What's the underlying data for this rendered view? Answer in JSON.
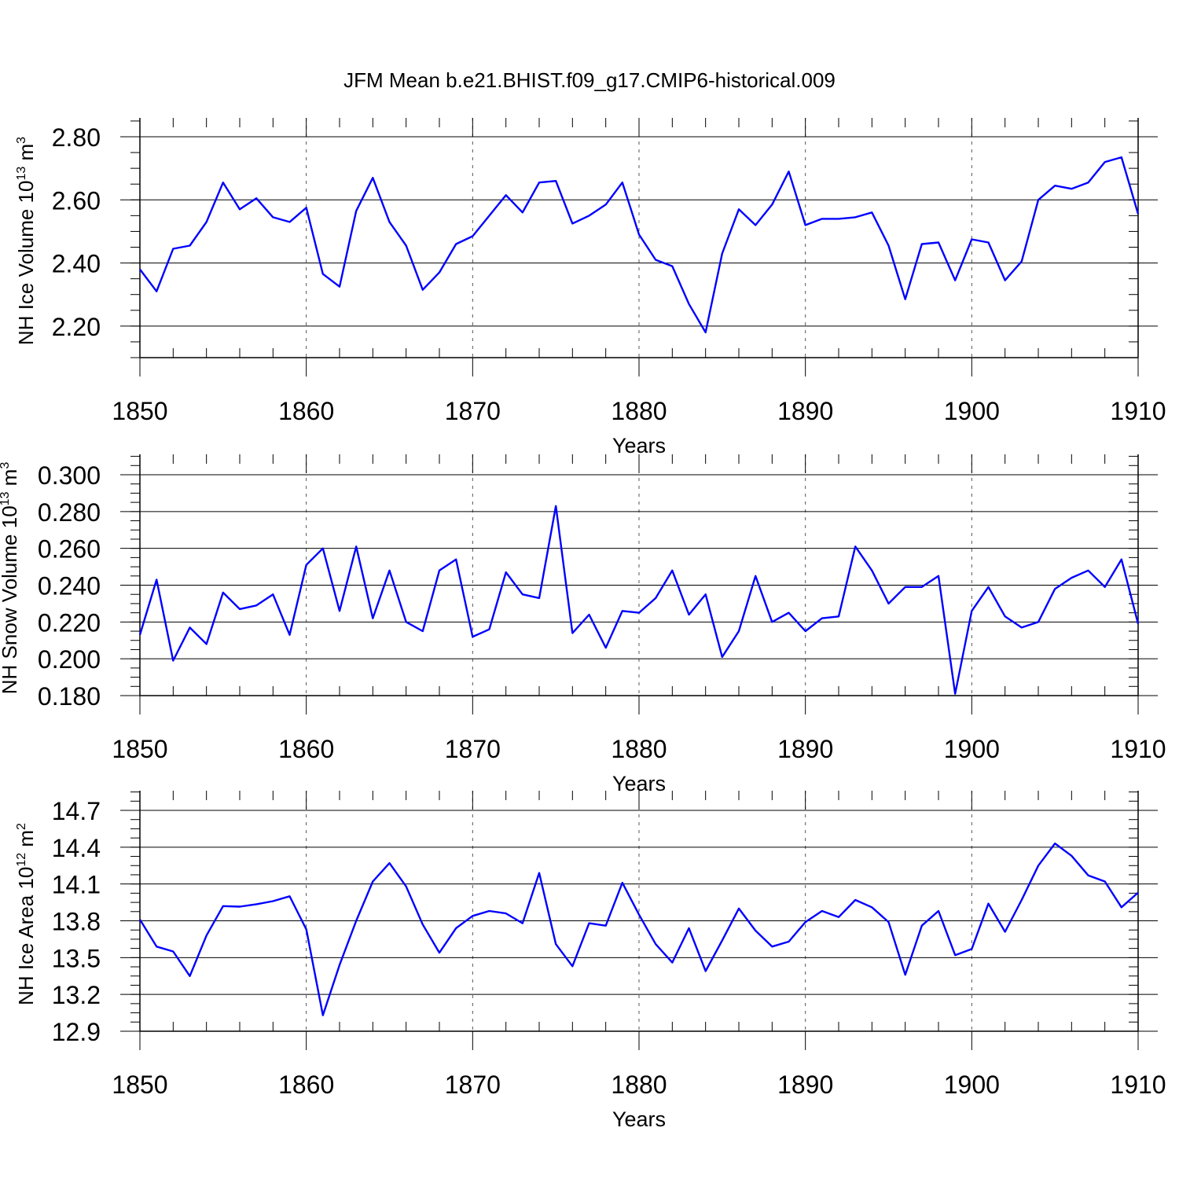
{
  "title": "JFM Mean b.e21.BHIST.f09_g17.CMIP6-historical.009",
  "line_color": "#0000ff",
  "chart_data": [
    {
      "type": "line",
      "ylabel": "NH Ice Volume 10",
      "ylabel_exp": "13",
      "ylabel_unit": " m",
      "ylabel_unit_exp": "3",
      "xlabel": "Years",
      "xlim": [
        1850,
        1910
      ],
      "ylim": [
        2.1,
        2.86
      ],
      "grid_x": "dashed vertical at major ticks",
      "x_ticks": [
        1850,
        1860,
        1870,
        1880,
        1890,
        1900,
        1910
      ],
      "x_tick_labels": [
        "1850",
        "1860",
        "1870",
        "1880",
        "1890",
        "1900",
        "1910"
      ],
      "y_ticks": [
        2.2,
        2.4,
        2.6,
        2.8
      ],
      "y_tick_labels": [
        "2.20",
        "2.40",
        "2.60",
        "2.80"
      ],
      "x": [
        1850,
        1851,
        1852,
        1853,
        1854,
        1855,
        1856,
        1857,
        1858,
        1859,
        1860,
        1861,
        1862,
        1863,
        1864,
        1865,
        1866,
        1867,
        1868,
        1869,
        1870,
        1871,
        1872,
        1873,
        1874,
        1875,
        1876,
        1877,
        1878,
        1879,
        1880,
        1881,
        1882,
        1883,
        1884,
        1885,
        1886,
        1887,
        1888,
        1889,
        1890,
        1891,
        1892,
        1893,
        1894,
        1895,
        1896,
        1897,
        1898,
        1899,
        1900,
        1901,
        1902,
        1903,
        1904,
        1905,
        1906,
        1907,
        1908,
        1909,
        1910
      ],
      "values": [
        2.38,
        2.31,
        2.445,
        2.455,
        2.53,
        2.655,
        2.57,
        2.605,
        2.545,
        2.53,
        2.575,
        2.365,
        2.325,
        2.565,
        2.67,
        2.53,
        2.455,
        2.315,
        2.37,
        2.46,
        2.485,
        2.55,
        2.615,
        2.56,
        2.655,
        2.66,
        2.525,
        2.55,
        2.585,
        2.655,
        2.49,
        2.41,
        2.39,
        2.27,
        2.18,
        2.43,
        2.57,
        2.52,
        2.585,
        2.69,
        2.52,
        2.54,
        2.54,
        2.545,
        2.56,
        2.455,
        2.285,
        2.46,
        2.465,
        2.345,
        2.475,
        2.465,
        2.345,
        2.405,
        2.6,
        2.645,
        2.635,
        2.655,
        2.72,
        2.735,
        2.555
      ]
    },
    {
      "type": "line",
      "ylabel": "NH Snow Volume 10",
      "ylabel_exp": "13",
      "ylabel_unit": " m",
      "ylabel_unit_exp": "3",
      "xlabel": "Years",
      "xlim": [
        1850,
        1910
      ],
      "ylim": [
        0.18,
        0.3
      ],
      "grid_x": "dashed vertical at major ticks",
      "x_ticks": [
        1850,
        1860,
        1870,
        1880,
        1890,
        1900,
        1910
      ],
      "x_tick_labels": [
        "1850",
        "1860",
        "1870",
        "1880",
        "1890",
        "1900",
        "1910"
      ],
      "y_ticks": [
        0.18,
        0.2,
        0.22,
        0.24,
        0.26,
        0.28,
        0.3
      ],
      "y_tick_labels": [
        "0.180",
        "0.200",
        "0.220",
        "0.240",
        "0.260",
        "0.280",
        "0.300"
      ],
      "x": [
        1850,
        1851,
        1852,
        1853,
        1854,
        1855,
        1856,
        1857,
        1858,
        1859,
        1860,
        1861,
        1862,
        1863,
        1864,
        1865,
        1866,
        1867,
        1868,
        1869,
        1870,
        1871,
        1872,
        1873,
        1874,
        1875,
        1876,
        1877,
        1878,
        1879,
        1880,
        1881,
        1882,
        1883,
        1884,
        1885,
        1886,
        1887,
        1888,
        1889,
        1890,
        1891,
        1892,
        1893,
        1894,
        1895,
        1896,
        1897,
        1898,
        1899,
        1900,
        1901,
        1902,
        1903,
        1904,
        1905,
        1906,
        1907,
        1908,
        1909,
        1910
      ],
      "values": [
        0.213,
        0.243,
        0.199,
        0.217,
        0.208,
        0.236,
        0.227,
        0.229,
        0.235,
        0.213,
        0.251,
        0.26,
        0.226,
        0.261,
        0.222,
        0.248,
        0.22,
        0.215,
        0.248,
        0.254,
        0.212,
        0.216,
        0.247,
        0.235,
        0.233,
        0.283,
        0.214,
        0.224,
        0.206,
        0.226,
        0.225,
        0.233,
        0.248,
        0.224,
        0.235,
        0.201,
        0.215,
        0.245,
        0.22,
        0.225,
        0.215,
        0.222,
        0.223,
        0.261,
        0.248,
        0.23,
        0.239,
        0.239,
        0.245,
        0.181,
        0.226,
        0.239,
        0.223,
        0.217,
        0.22,
        0.238,
        0.244,
        0.248,
        0.239,
        0.254,
        0.219
      ]
    },
    {
      "type": "line",
      "ylabel": "NH Ice Area 10",
      "ylabel_exp": "12",
      "ylabel_unit": " m",
      "ylabel_unit_exp": "2",
      "xlabel": "Years",
      "xlim": [
        1850,
        1910
      ],
      "ylim": [
        12.9,
        14.7
      ],
      "grid_x": "dashed vertical at major ticks",
      "x_ticks": [
        1850,
        1860,
        1870,
        1880,
        1890,
        1900,
        1910
      ],
      "x_tick_labels": [
        "1850",
        "1860",
        "1870",
        "1880",
        "1890",
        "1900",
        "1910"
      ],
      "y_ticks": [
        12.9,
        13.2,
        13.5,
        13.8,
        14.1,
        14.4,
        14.7
      ],
      "y_tick_labels": [
        "12.9",
        "13.2",
        "13.5",
        "13.8",
        "14.1",
        "14.4",
        "14.7"
      ],
      "x": [
        1850,
        1851,
        1852,
        1853,
        1854,
        1855,
        1856,
        1857,
        1858,
        1859,
        1860,
        1861,
        1862,
        1863,
        1864,
        1865,
        1866,
        1867,
        1868,
        1869,
        1870,
        1871,
        1872,
        1873,
        1874,
        1875,
        1876,
        1877,
        1878,
        1879,
        1880,
        1881,
        1882,
        1883,
        1884,
        1885,
        1886,
        1887,
        1888,
        1889,
        1890,
        1891,
        1892,
        1893,
        1894,
        1895,
        1896,
        1897,
        1898,
        1899,
        1900,
        1901,
        1902,
        1903,
        1904,
        1905,
        1906,
        1907,
        1908,
        1909,
        1910
      ],
      "values": [
        13.81,
        13.59,
        13.55,
        13.35,
        13.68,
        13.92,
        13.915,
        13.935,
        13.96,
        14.0,
        13.73,
        13.03,
        13.44,
        13.8,
        14.12,
        14.27,
        14.08,
        13.77,
        13.54,
        13.74,
        13.84,
        13.88,
        13.86,
        13.78,
        14.19,
        13.61,
        13.43,
        13.78,
        13.76,
        14.11,
        13.85,
        13.61,
        13.46,
        13.74,
        13.39,
        13.64,
        13.9,
        13.72,
        13.59,
        13.63,
        13.79,
        13.88,
        13.83,
        13.97,
        13.91,
        13.79,
        13.36,
        13.76,
        13.88,
        13.52,
        13.57,
        13.94,
        13.71,
        13.97,
        14.25,
        14.43,
        14.33,
        14.17,
        14.12,
        13.91,
        14.03
      ]
    }
  ]
}
